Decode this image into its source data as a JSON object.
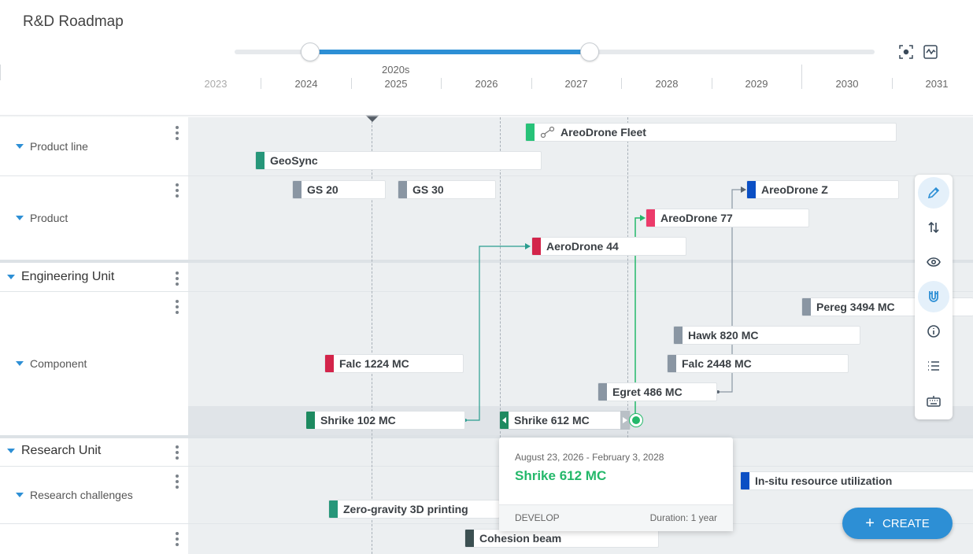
{
  "app": {
    "title": "R&D Roadmap"
  },
  "timeline": {
    "decade": "2020s",
    "years": [
      "2023",
      "2024",
      "2025",
      "2026",
      "2027",
      "2028",
      "2029",
      "2030",
      "2031"
    ],
    "range_handles": [
      "2024",
      "2027"
    ]
  },
  "rows": {
    "product_line": "Product line",
    "product": "Product",
    "engineering_unit": "Engineering Unit",
    "component": "Component",
    "research_unit": "Research Unit",
    "research_challenges": "Research challenges"
  },
  "bars": {
    "areodrone_fleet": "AreoDrone Fleet",
    "geosync": "GeoSync",
    "gs20": "GS 20",
    "gs30": "GS 30",
    "areodrone_z": "AreoDrone Z",
    "areodrone_77": "AreoDrone 77",
    "aerodrone_44": "AeroDrone 44",
    "pereg": "Pereg 3494 MC",
    "hawk": "Hawk 820 MC",
    "falc1224": "Falc 1224 MC",
    "falc2448": "Falc 2448 MC",
    "egret": "Egret 486 MC",
    "shrike102": "Shrike 102 MC",
    "shrike612": "Shrike 612 MC",
    "insitu": "In-situ resource utilization",
    "zerog": "Zero-gravity 3D printing",
    "cohesion": "Cohesion beam"
  },
  "colors": {
    "green": "#27c278",
    "teal": "#27977a",
    "gray": "#8a96a3",
    "blue": "#0b4fc4",
    "pink": "#ec3b6a",
    "crimson": "#d3244a",
    "darkgreen": "#1d8a60",
    "dark": "#3c5052",
    "accent": "#2d8fd5"
  },
  "popup": {
    "dates": "August 23, 2026 - February 3, 2028",
    "name": "Shrike 612 MC",
    "phase": "DEVELOP",
    "duration": "Duration: 1 year"
  },
  "toolbar": {
    "icons": [
      "pencil-icon",
      "sort-icon",
      "eye-icon",
      "magnet-icon",
      "info-icon",
      "list-icon",
      "keyboard-icon"
    ]
  },
  "create_button": {
    "label": "CREATE"
  }
}
